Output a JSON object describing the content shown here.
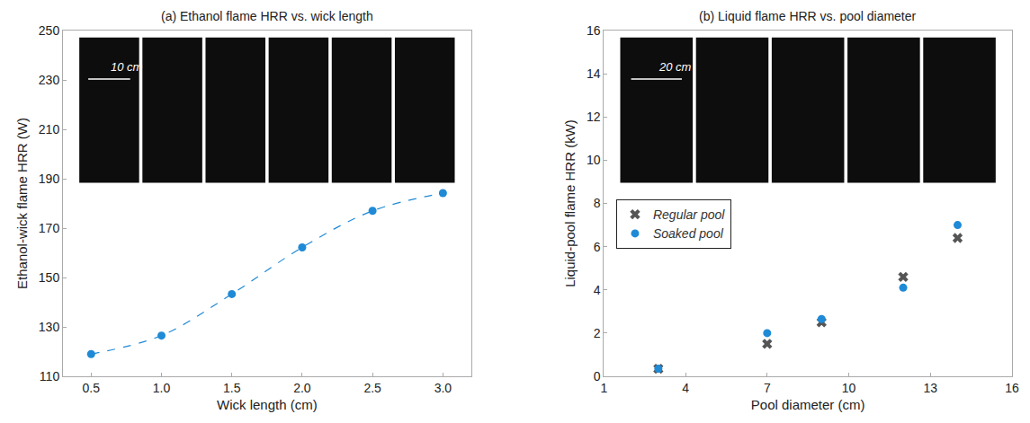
{
  "chart_data": [
    {
      "type": "scatter",
      "title": "(a) Ethanol flame HRR vs. wick length",
      "x_label": "Wick length (cm)",
      "y_label": "Ethanol-wick flame HRR (W)",
      "x": [
        0.5,
        1.0,
        1.5,
        2.0,
        2.5,
        3.0
      ],
      "values": [
        119,
        126.5,
        143.3,
        162.2,
        177,
        184.2
      ],
      "color": "#1f8ad6",
      "marker": "circle",
      "line_style": "dashed",
      "xlim": [
        0.3,
        3.2
      ],
      "xticks": [
        0.5,
        {
          "value": 1,
          "label": "1.0"
        },
        1.5,
        {
          "value": 2,
          "label": "2.0"
        },
        2.5,
        {
          "value": 3,
          "label": "3.0"
        }
      ],
      "ylim": [
        110,
        250
      ],
      "yticks": [
        110,
        130,
        150,
        170,
        190,
        210,
        230,
        250
      ],
      "grid": false,
      "annotations": [
        {
          "text": "10 cm"
        }
      ]
    },
    {
      "type": "scatter",
      "title": "(b) Liquid flame HRR vs. pool diameter",
      "x_label": "Pool diameter (cm)",
      "y_label": "Liquid-pool flame HRR (kW)",
      "series": [
        {
          "name": "Regular pool",
          "color": "#555555",
          "marker": "x",
          "x": [
            3,
            7,
            9,
            12,
            14
          ],
          "values": [
            0.35,
            1.5,
            2.5,
            4.6,
            6.4
          ]
        },
        {
          "name": "Soaked pool",
          "color": "#1f8ad6",
          "marker": "circle",
          "x": [
            3,
            7,
            9,
            12,
            14
          ],
          "values": [
            0.35,
            2.0,
            2.65,
            4.1,
            7.0
          ]
        }
      ],
      "xlim": [
        1,
        16
      ],
      "xticks": [
        1,
        4,
        7,
        10,
        13,
        16
      ],
      "ylim": [
        0,
        16
      ],
      "yticks": [
        0,
        2,
        4,
        6,
        8,
        10,
        12,
        14,
        16
      ],
      "grid": false,
      "legend": "center left",
      "annotations": [
        {
          "text": "20 cm"
        }
      ]
    }
  ]
}
